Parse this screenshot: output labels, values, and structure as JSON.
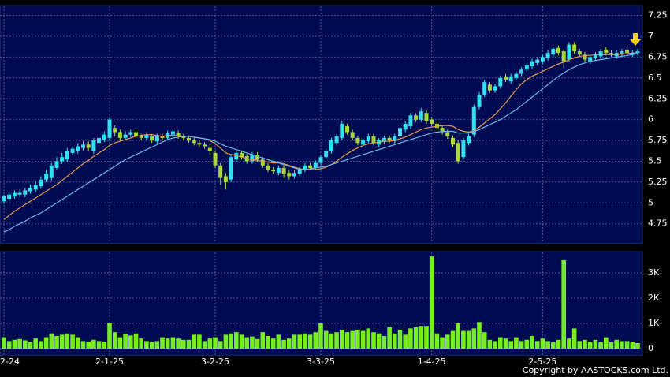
{
  "chart_data": [
    {
      "type": "candlestick",
      "grid": true,
      "up_color": "#33e0f0",
      "down_color": "#a8d838",
      "ylim": [
        4.52,
        7.36
      ],
      "yticks": [
        4.75,
        5,
        5.25,
        5.5,
        5.75,
        6,
        6.25,
        6.5,
        6.75,
        7,
        7.25
      ],
      "open": [
        5.02,
        5.05,
        5.08,
        5.1,
        5.1,
        5.14,
        5.16,
        5.2,
        5.28,
        5.3,
        5.42,
        5.5,
        5.52,
        5.6,
        5.62,
        5.66,
        5.7,
        5.62,
        5.72,
        5.76,
        5.78,
        5.9,
        5.85,
        5.78,
        5.82,
        5.85,
        5.8,
        5.78,
        5.8,
        5.74,
        5.8,
        5.78,
        5.82,
        5.84,
        5.8,
        5.78,
        5.75,
        5.72,
        5.7,
        5.66,
        5.6,
        5.45,
        5.32,
        5.28,
        5.52,
        5.6,
        5.56,
        5.5,
        5.58,
        5.52,
        5.45,
        5.4,
        5.36,
        5.42,
        5.36,
        5.32,
        5.35,
        5.4,
        5.45,
        5.42,
        5.48,
        5.55,
        5.62,
        5.72,
        5.78,
        5.92,
        5.85,
        5.78,
        5.7,
        5.74,
        5.8,
        5.7,
        5.74,
        5.78,
        5.74,
        5.8,
        5.88,
        5.92,
        6.05,
        6.0,
        6.08,
        6.0,
        5.95,
        5.9,
        5.85,
        5.78,
        5.72,
        5.55,
        5.72,
        5.82,
        6.15,
        6.3,
        6.42,
        6.35,
        6.4,
        6.52,
        6.46,
        6.5,
        6.55,
        6.6,
        6.64,
        6.68,
        6.7,
        6.74,
        6.78,
        6.86,
        6.82,
        6.72,
        6.9,
        6.82,
        6.78,
        6.7,
        6.74,
        6.76,
        6.84,
        6.8,
        6.76,
        6.78,
        6.84,
        6.78,
        6.8
      ],
      "high": [
        5.1,
        5.13,
        5.15,
        5.16,
        5.18,
        5.22,
        5.26,
        5.32,
        5.4,
        5.48,
        5.55,
        5.6,
        5.66,
        5.68,
        5.72,
        5.74,
        5.74,
        5.78,
        5.82,
        5.86,
        6.02,
        5.93,
        5.88,
        5.86,
        5.88,
        5.88,
        5.83,
        5.85,
        5.83,
        5.83,
        5.83,
        5.87,
        5.89,
        5.87,
        5.83,
        5.81,
        5.78,
        5.75,
        5.73,
        5.7,
        5.63,
        5.48,
        5.36,
        5.58,
        5.63,
        5.63,
        5.59,
        5.61,
        5.61,
        5.55,
        5.48,
        5.43,
        5.45,
        5.45,
        5.39,
        5.39,
        5.43,
        5.48,
        5.48,
        5.51,
        5.58,
        5.65,
        5.78,
        5.83,
        5.98,
        5.95,
        5.88,
        5.81,
        5.78,
        5.83,
        5.83,
        5.78,
        5.81,
        5.81,
        5.83,
        5.93,
        5.98,
        6.08,
        6.08,
        6.14,
        6.11,
        6.03,
        5.98,
        5.93,
        5.88,
        5.81,
        5.75,
        5.78,
        5.83,
        6.18,
        6.33,
        6.48,
        6.45,
        6.43,
        6.53,
        6.55,
        6.55,
        6.58,
        6.63,
        6.68,
        6.73,
        6.75,
        6.78,
        6.83,
        6.88,
        6.89,
        6.85,
        6.93,
        6.93,
        6.85,
        6.81,
        6.78,
        6.81,
        6.85,
        6.87,
        6.83,
        6.83,
        6.85,
        6.87,
        6.83,
        6.85
      ],
      "low": [
        4.99,
        5.02,
        5.05,
        5.07,
        5.07,
        5.11,
        5.13,
        5.17,
        5.25,
        5.27,
        5.39,
        5.47,
        5.49,
        5.57,
        5.59,
        5.63,
        5.62,
        5.59,
        5.69,
        5.73,
        5.75,
        5.8,
        5.74,
        5.75,
        5.79,
        5.77,
        5.75,
        5.75,
        5.72,
        5.71,
        5.75,
        5.75,
        5.79,
        5.77,
        5.75,
        5.72,
        5.69,
        5.67,
        5.65,
        5.58,
        5.42,
        5.22,
        5.16,
        5.25,
        5.49,
        5.52,
        5.47,
        5.47,
        5.49,
        5.42,
        5.37,
        5.35,
        5.33,
        5.3,
        5.28,
        5.29,
        5.32,
        5.37,
        5.39,
        5.39,
        5.45,
        5.52,
        5.59,
        5.69,
        5.75,
        5.82,
        5.75,
        5.69,
        5.67,
        5.71,
        5.69,
        5.67,
        5.71,
        5.72,
        5.71,
        5.77,
        5.85,
        5.89,
        5.97,
        5.97,
        5.95,
        5.92,
        5.87,
        5.82,
        5.77,
        5.67,
        5.47,
        5.52,
        5.69,
        5.79,
        6.12,
        6.27,
        6.32,
        6.32,
        6.37,
        6.45,
        6.43,
        6.47,
        6.52,
        6.57,
        6.61,
        6.65,
        6.67,
        6.71,
        6.75,
        6.77,
        6.62,
        6.69,
        6.79,
        6.75,
        6.69,
        6.67,
        6.71,
        6.73,
        6.77,
        6.75,
        6.73,
        6.75,
        6.77,
        6.75,
        6.77
      ],
      "close": [
        5.08,
        5.1,
        5.12,
        5.12,
        5.15,
        5.18,
        5.22,
        5.28,
        5.35,
        5.45,
        5.5,
        5.55,
        5.62,
        5.65,
        5.68,
        5.7,
        5.66,
        5.75,
        5.78,
        5.82,
        6.0,
        5.85,
        5.78,
        5.82,
        5.85,
        5.8,
        5.78,
        5.82,
        5.75,
        5.8,
        5.78,
        5.84,
        5.86,
        5.8,
        5.78,
        5.75,
        5.72,
        5.7,
        5.68,
        5.62,
        5.45,
        5.3,
        5.25,
        5.55,
        5.6,
        5.55,
        5.5,
        5.58,
        5.52,
        5.45,
        5.4,
        5.38,
        5.42,
        5.35,
        5.32,
        5.36,
        5.4,
        5.45,
        5.42,
        5.48,
        5.55,
        5.62,
        5.75,
        5.8,
        5.95,
        5.85,
        5.78,
        5.72,
        5.75,
        5.8,
        5.72,
        5.75,
        5.78,
        5.75,
        5.8,
        5.9,
        5.95,
        6.05,
        6.0,
        6.1,
        5.98,
        5.95,
        5.9,
        5.85,
        5.8,
        5.7,
        5.5,
        5.75,
        5.8,
        6.15,
        6.3,
        6.45,
        6.35,
        6.4,
        6.5,
        6.48,
        6.52,
        6.55,
        6.6,
        6.65,
        6.7,
        6.72,
        6.75,
        6.8,
        6.85,
        6.8,
        6.7,
        6.9,
        6.82,
        6.78,
        6.72,
        6.75,
        6.78,
        6.82,
        6.8,
        6.78,
        6.8,
        6.82,
        6.8,
        6.8,
        6.82
      ],
      "series": [
        {
          "color": "#e89a50",
          "values": [
            4.8,
            4.85,
            4.9,
            4.94,
            4.98,
            5.02,
            5.06,
            5.1,
            5.14,
            5.18,
            5.22,
            5.27,
            5.32,
            5.37,
            5.42,
            5.47,
            5.51,
            5.56,
            5.6,
            5.64,
            5.69,
            5.72,
            5.74,
            5.76,
            5.78,
            5.8,
            5.81,
            5.82,
            5.82,
            5.81,
            5.8,
            5.81,
            5.81,
            5.81,
            5.8,
            5.8,
            5.79,
            5.78,
            5.77,
            5.75,
            5.71,
            5.66,
            5.6,
            5.58,
            5.57,
            5.55,
            5.53,
            5.52,
            5.51,
            5.5,
            5.49,
            5.48,
            5.48,
            5.47,
            5.45,
            5.43,
            5.41,
            5.4,
            5.4,
            5.4,
            5.41,
            5.43,
            5.46,
            5.5,
            5.55,
            5.59,
            5.63,
            5.66,
            5.69,
            5.71,
            5.72,
            5.73,
            5.74,
            5.74,
            5.75,
            5.77,
            5.79,
            5.82,
            5.85,
            5.88,
            5.9,
            5.91,
            5.92,
            5.93,
            5.93,
            5.92,
            5.88,
            5.86,
            5.85,
            5.87,
            5.91,
            5.96,
            6.01,
            6.06,
            6.13,
            6.2,
            6.28,
            6.36,
            6.43,
            6.48,
            6.52,
            6.55,
            6.58,
            6.61,
            6.64,
            6.67,
            6.69,
            6.72,
            6.74,
            6.76,
            6.77,
            6.77,
            6.78,
            6.78,
            6.78,
            6.78,
            6.78,
            6.79,
            6.79,
            6.8,
            6.8
          ]
        },
        {
          "color": "#6cb8e8",
          "values": [
            4.65,
            4.68,
            4.72,
            4.75,
            4.78,
            4.82,
            4.85,
            4.88,
            4.92,
            4.96,
            5.0,
            5.04,
            5.08,
            5.12,
            5.16,
            5.2,
            5.24,
            5.28,
            5.32,
            5.36,
            5.4,
            5.44,
            5.48,
            5.52,
            5.55,
            5.58,
            5.61,
            5.64,
            5.67,
            5.7,
            5.73,
            5.76,
            5.78,
            5.79,
            5.8,
            5.8,
            5.79,
            5.78,
            5.77,
            5.76,
            5.74,
            5.71,
            5.68,
            5.66,
            5.64,
            5.62,
            5.6,
            5.58,
            5.56,
            5.54,
            5.52,
            5.5,
            5.48,
            5.46,
            5.44,
            5.42,
            5.4,
            5.4,
            5.41,
            5.42,
            5.43,
            5.44,
            5.46,
            5.48,
            5.5,
            5.52,
            5.54,
            5.56,
            5.58,
            5.6,
            5.62,
            5.64,
            5.66,
            5.68,
            5.7,
            5.72,
            5.74,
            5.76,
            5.78,
            5.8,
            5.82,
            5.84,
            5.85,
            5.86,
            5.86,
            5.86,
            5.84,
            5.84,
            5.84,
            5.86,
            5.88,
            5.91,
            5.94,
            5.97,
            6.0,
            6.04,
            6.08,
            6.12,
            6.17,
            6.22,
            6.27,
            6.32,
            6.37,
            6.42,
            6.47,
            6.52,
            6.56,
            6.6,
            6.63,
            6.66,
            6.68,
            6.7,
            6.71,
            6.72,
            6.73,
            6.74,
            6.75,
            6.76,
            6.77,
            6.78,
            6.79
          ]
        }
      ]
    },
    {
      "type": "bar",
      "grid": true,
      "color": "#77ee22",
      "annotation": "Copyright by AASTOCKS.com Ltd.",
      "ylim": [
        -250,
        3810
      ],
      "yticks": [
        0,
        {
          "value": 1000,
          "label": "1K"
        },
        {
          "value": 2000,
          "label": "2K"
        },
        {
          "value": 3000,
          "label": "3K"
        }
      ],
      "categories": [
        "2-24",
        null,
        null,
        null,
        null,
        null,
        null,
        null,
        null,
        null,
        null,
        null,
        null,
        null,
        null,
        null,
        null,
        null,
        null,
        null,
        "2-1-25",
        null,
        null,
        null,
        null,
        null,
        null,
        null,
        null,
        null,
        null,
        null,
        null,
        null,
        null,
        null,
        null,
        null,
        null,
        null,
        "3-2-25",
        null,
        null,
        null,
        null,
        null,
        null,
        null,
        null,
        null,
        null,
        null,
        null,
        null,
        null,
        null,
        null,
        null,
        null,
        null,
        "3-3-25",
        null,
        null,
        null,
        null,
        null,
        null,
        null,
        null,
        null,
        null,
        null,
        null,
        null,
        null,
        null,
        null,
        null,
        null,
        null,
        null,
        "1-4-25",
        null,
        null,
        null,
        null,
        null,
        null,
        null,
        null,
        null,
        null,
        null,
        null,
        null,
        null,
        null,
        null,
        null,
        null,
        null,
        null,
        "2-5-25",
        null,
        null,
        null,
        null,
        null,
        null,
        null,
        null,
        null,
        null,
        null,
        null,
        null,
        null,
        null,
        null,
        null,
        null
      ],
      "values": [
        450,
        300,
        350,
        380,
        330,
        250,
        400,
        300,
        450,
        600,
        500,
        550,
        600,
        550,
        450,
        300,
        280,
        350,
        300,
        280,
        1000,
        650,
        450,
        580,
        520,
        600,
        400,
        300,
        250,
        300,
        450,
        400,
        450,
        400,
        350,
        350,
        550,
        550,
        300,
        400,
        450,
        300,
        550,
        600,
        650,
        550,
        450,
        480,
        380,
        650,
        500,
        400,
        550,
        350,
        400,
        550,
        550,
        600,
        550,
        650,
        1000,
        700,
        600,
        650,
        750,
        650,
        700,
        750,
        700,
        800,
        650,
        600,
        500,
        850,
        600,
        750,
        550,
        800,
        850,
        900,
        900,
        3650,
        600,
        450,
        550,
        700,
        1000,
        700,
        700,
        800,
        1050,
        650,
        350,
        300,
        450,
        400,
        300,
        450,
        300,
        350,
        500,
        300,
        400,
        300,
        250,
        350,
        3500,
        400,
        800,
        300,
        350,
        250,
        350,
        250,
        450,
        250,
        350,
        300,
        300,
        250,
        220
      ]
    }
  ]
}
